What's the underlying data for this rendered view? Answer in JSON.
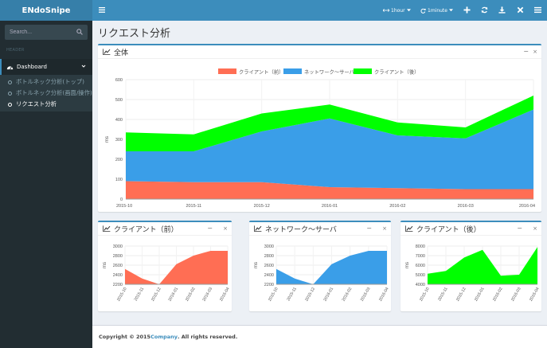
{
  "app": {
    "brand": "ENdoSnipe"
  },
  "sidebar": {
    "search_placeholder": "Search...",
    "header": "HEADER",
    "dashboard": "Dashboard",
    "items": [
      {
        "label": "ボトルネック分析(トップ)"
      },
      {
        "label": "ボトルネック分析(画面/操作)"
      },
      {
        "label": "リクエスト分析"
      }
    ]
  },
  "topnav": {
    "range": "1hour",
    "interval": "1minute"
  },
  "page": {
    "title": "リクエスト分析"
  },
  "main_chart": {
    "title": "全体",
    "ylabel": "ms",
    "legend": [
      "クライアント（前）",
      "ネットワーク〜サーバ",
      "クライアント（後）"
    ],
    "x": [
      "2015-10",
      "2015-11",
      "2015-12",
      "2016-01",
      "2016-02",
      "2016-03",
      "2016-04"
    ],
    "yticks": [
      "0",
      "100",
      "200",
      "300",
      "400",
      "500",
      "600"
    ],
    "colors": [
      "#ff6e54",
      "#3a9ee8",
      "#00ff00"
    ]
  },
  "small_charts": [
    {
      "title": "クライアント（前）",
      "ylabel": "ms",
      "yticks": [
        "2200",
        "2400",
        "2600",
        "2800",
        "3000"
      ]
    },
    {
      "title": "ネットワーク〜サーバ",
      "ylabel": "ms",
      "yticks": [
        "2200",
        "2400",
        "2600",
        "2800",
        "3000"
      ]
    },
    {
      "title": "クライアント（後）",
      "ylabel": "ms",
      "yticks": [
        "4000",
        "5000",
        "6000",
        "7000",
        "8000"
      ]
    }
  ],
  "chart_data": [
    {
      "type": "area",
      "title": "全体",
      "ylabel": "ms",
      "x": [
        "2015-10",
        "2015-11",
        "2015-12",
        "2016-01",
        "2016-02",
        "2016-03",
        "2016-04"
      ],
      "ylim": [
        0,
        600
      ],
      "stacked": true,
      "legend_position": "top",
      "series": [
        {
          "name": "クライアント（前）",
          "values": [
            90,
            85,
            85,
            60,
            55,
            50,
            50
          ]
        },
        {
          "name": "ネットワーク〜サーバ",
          "values": [
            150,
            155,
            255,
            345,
            265,
            255,
            400
          ]
        },
        {
          "name": "クライアント（後）",
          "values": [
            95,
            85,
            90,
            70,
            65,
            55,
            70
          ]
        }
      ]
    },
    {
      "type": "area",
      "title": "クライアント（前）",
      "ylabel": "ms",
      "x": [
        "2015-10",
        "2015-11",
        "2015-12",
        "2016-01",
        "2016-02",
        "2016-03",
        "2016-04"
      ],
      "ylim": [
        2200,
        3000
      ],
      "values": [
        2520,
        2320,
        2200,
        2620,
        2800,
        2900,
        2900
      ]
    },
    {
      "type": "area",
      "title": "ネットワーク〜サーバ",
      "ylabel": "ms",
      "x": [
        "2015-10",
        "2015-11",
        "2015-12",
        "2016-01",
        "2016-02",
        "2016-03",
        "2016-04"
      ],
      "ylim": [
        2200,
        3000
      ],
      "values": [
        2520,
        2320,
        2200,
        2620,
        2800,
        2900,
        2900
      ]
    },
    {
      "type": "area",
      "title": "クライアント（後）",
      "ylabel": "ms",
      "x": [
        "2015-10",
        "2015-11",
        "2015-12",
        "2016-01",
        "2016-02",
        "2016-03",
        "2016-04"
      ],
      "ylim": [
        4000,
        8000
      ],
      "values": [
        5100,
        5400,
        6800,
        7600,
        4900,
        5000,
        7900
      ]
    }
  ],
  "footer": {
    "prefix": "Copyright © 2015 ",
    "company": "Company",
    "suffix": ". All rights reserved."
  }
}
